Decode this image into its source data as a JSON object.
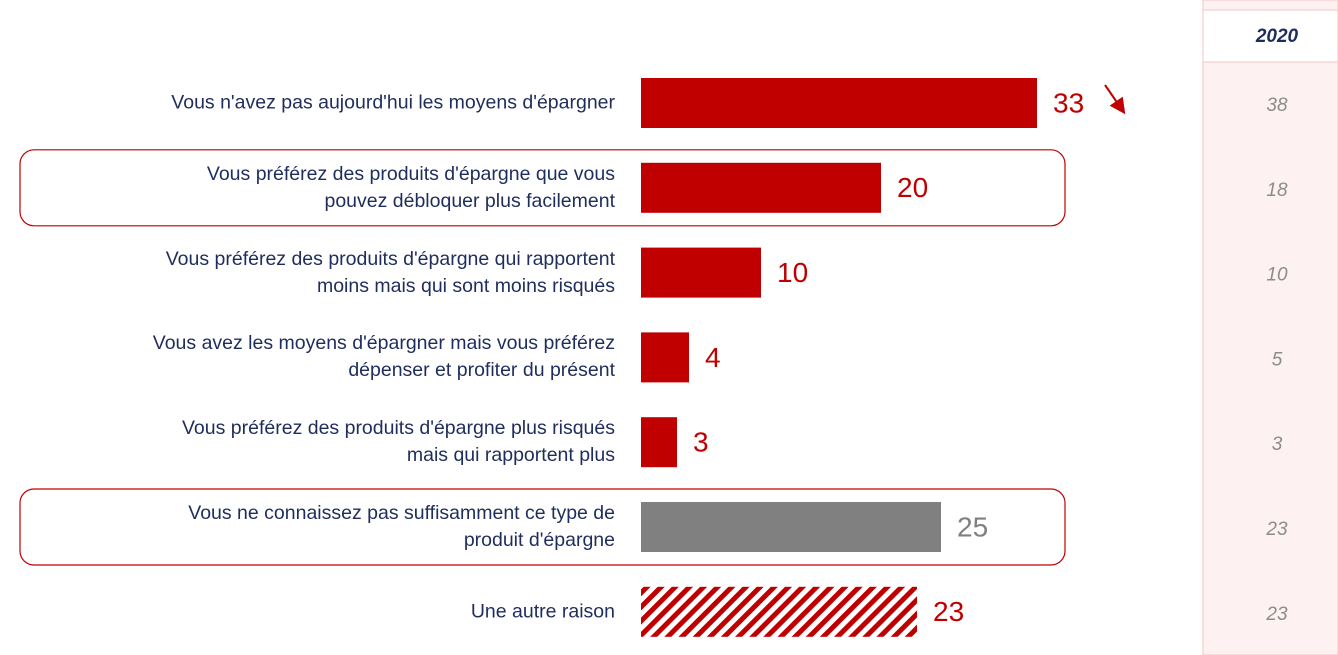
{
  "chart_data": {
    "type": "bar",
    "orientation": "horizontal",
    "categories": [
      "Vous n'avez pas aujourd'hui les moyens d'épargner",
      "Vous préférez des produits d'épargne que vous\npouvez débloquer plus facilement",
      "Vous préférez des produits d'épargne qui rapportent\nmoins mais qui sont moins risqués",
      "Vous avez les moyens d'épargner mais vous préférez\ndépenser et profiter du présent",
      "Vous préférez des produits d'épargne plus risqués\nmais qui rapportent plus",
      "Vous ne connaissez pas suffisamment ce type de\nproduit d'épargne",
      "Une autre raison"
    ],
    "values": [
      33,
      20,
      10,
      4,
      3,
      25,
      23
    ],
    "colors": [
      "#c00000",
      "#c00000",
      "#c00000",
      "#c00000",
      "#c00000",
      "#808080",
      "#c00000"
    ],
    "bar_styles": [
      "solid",
      "solid",
      "solid",
      "solid",
      "solid",
      "solid",
      "hatched"
    ],
    "highlighted": [
      1,
      5
    ],
    "trend": [
      "down",
      null,
      null,
      null,
      null,
      null,
      null
    ],
    "xlim": [
      0,
      33
    ],
    "comparison": {
      "label": "2020",
      "values": [
        38,
        18,
        10,
        5,
        3,
        23,
        23
      ]
    }
  }
}
